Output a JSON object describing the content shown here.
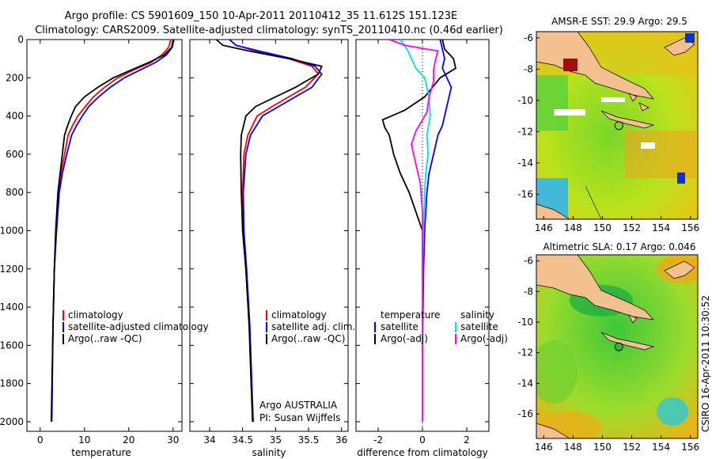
{
  "header": {
    "line1": "Argo profile: CS 5901609_150 10-Apr-2011 20110412_35 11.612S 151.123E",
    "line2": "Climatology: CARS2009. Satellite-adjusted climatology: synTS_20110410.nc (0.46d earlier)"
  },
  "footer_stamp": "CSIRO 16-Apr-2011 10:30:52",
  "colors": {
    "climatology": "#ff0000",
    "satellite": "#0000ff",
    "argo": "#000000",
    "sat_diff": "#00e0e0",
    "argo_sal_diff": "#ff00ff"
  },
  "chart_data": [
    {
      "type": "line",
      "id": "temperature",
      "xlabel": "temperature",
      "ylabel": "",
      "xlim": [
        -3,
        32
      ],
      "ylim": [
        2050,
        0
      ],
      "xticks": [
        0,
        10,
        20,
        30
      ],
      "yticks": [
        0,
        200,
        400,
        600,
        800,
        1000,
        1200,
        1400,
        1600,
        1800,
        2000
      ],
      "series": [
        {
          "name": "climatology",
          "color": "#ff0000",
          "x": [
            29.5,
            29.0,
            27.5,
            25.0,
            21.0,
            17.5,
            14.5,
            12.0,
            10.2,
            8.5,
            7.3,
            6.3,
            5.5,
            4.7,
            4.1,
            3.6,
            3.2,
            2.9,
            2.6
          ],
          "y": [
            0,
            40,
            80,
            120,
            160,
            200,
            250,
            300,
            350,
            400,
            450,
            500,
            600,
            700,
            800,
            1000,
            1200,
            1500,
            2000
          ]
        },
        {
          "name": "satellite-adjusted climatology",
          "color": "#0000ff",
          "x": [
            30.2,
            29.8,
            28.5,
            26.0,
            22.5,
            19.0,
            15.8,
            13.2,
            11.0,
            9.5,
            8.2,
            7.1,
            6.0,
            5.0,
            4.3,
            3.7,
            3.2,
            2.9,
            2.6
          ],
          "y": [
            0,
            40,
            80,
            120,
            160,
            200,
            250,
            300,
            350,
            400,
            450,
            500,
            600,
            700,
            800,
            1000,
            1200,
            1500,
            2000
          ]
        },
        {
          "name": "Argo(..raw -QC)",
          "color": "#000000",
          "x": [
            30.0,
            29.7,
            28.0,
            24.5,
            20.5,
            16.5,
            13.0,
            10.0,
            8.0,
            7.0,
            6.2,
            5.5,
            5.0,
            4.5,
            4.0,
            3.5,
            3.2,
            2.9,
            2.5
          ],
          "y": [
            0,
            40,
            80,
            120,
            160,
            200,
            250,
            300,
            350,
            400,
            450,
            500,
            600,
            700,
            800,
            1000,
            1200,
            1500,
            2000
          ]
        }
      ],
      "legend": [
        "climatology",
        "satellite-adjusted climatology",
        "Argo(..raw -QC)"
      ]
    },
    {
      "type": "line",
      "id": "salinity",
      "xlabel": "salinity",
      "xlim": [
        33.7,
        36.1
      ],
      "ylim": [
        2050,
        0
      ],
      "xticks": [
        34,
        34.5,
        35,
        35.5,
        36
      ],
      "series": [
        {
          "name": "climatology",
          "color": "#ff0000",
          "x": [
            34.3,
            34.4,
            34.7,
            35.2,
            35.55,
            35.65,
            35.45,
            35.2,
            34.95,
            34.72,
            34.58,
            34.52,
            34.5,
            34.5,
            34.55,
            34.6,
            34.63,
            34.66
          ],
          "y": [
            0,
            30,
            60,
            100,
            140,
            180,
            250,
            300,
            350,
            400,
            500,
            600,
            800,
            1000,
            1200,
            1500,
            1800,
            2000
          ]
        },
        {
          "name": "satellite adj. clim.",
          "color": "#0000ff",
          "x": [
            34.3,
            34.4,
            34.75,
            35.25,
            35.6,
            35.7,
            35.55,
            35.3,
            35.05,
            34.8,
            34.62,
            34.55,
            34.51,
            34.52,
            34.56,
            34.61,
            34.64,
            34.66
          ],
          "y": [
            0,
            30,
            60,
            100,
            140,
            180,
            250,
            300,
            350,
            400,
            500,
            600,
            800,
            1000,
            1200,
            1500,
            1800,
            2000
          ]
        },
        {
          "name": "Argo(..raw -QC)",
          "color": "#000000",
          "x": [
            34.1,
            34.2,
            34.6,
            35.2,
            35.7,
            35.65,
            35.3,
            35.0,
            34.7,
            34.55,
            34.48,
            34.47,
            34.48,
            34.5,
            34.55,
            34.6,
            34.63,
            34.65
          ],
          "y": [
            0,
            30,
            60,
            100,
            140,
            180,
            250,
            300,
            350,
            400,
            500,
            600,
            800,
            1000,
            1200,
            1500,
            1800,
            2000
          ]
        }
      ],
      "legend": [
        "climatology",
        "satellite adj. clim.",
        "Argo(..raw -QC)"
      ],
      "annotations": [
        "Argo AUSTRALIA",
        "PI: Susan Wijffels"
      ]
    },
    {
      "type": "line",
      "id": "difference",
      "xlabel": "difference from climatology",
      "xlim": [
        -3,
        3
      ],
      "ylim": [
        2050,
        0
      ],
      "xticks": [
        -2,
        0,
        2
      ],
      "series": [
        {
          "name": "temperature satellite",
          "color": "#0000ff",
          "x": [
            0.8,
            0.9,
            1.0,
            0.9,
            1.1,
            1.3,
            1.2,
            1.1,
            1.0,
            0.9,
            0.7,
            0.5,
            0.3,
            0.2,
            0.1,
            0.05,
            0.0,
            0.0
          ],
          "y": [
            0,
            50,
            100,
            150,
            200,
            250,
            300,
            350,
            400,
            450,
            500,
            600,
            700,
            800,
            1000,
            1200,
            1600,
            2000
          ]
        },
        {
          "name": "temperature Argo(-adj)",
          "color": "#000000",
          "x": [
            0.9,
            1.0,
            1.4,
            1.5,
            0.8,
            0.1,
            -0.8,
            -1.8,
            -1.7,
            -1.5,
            -1.3,
            -1.0,
            -0.6,
            -0.3,
            0.0,
            0.0,
            0.0
          ],
          "y": [
            0,
            50,
            100,
            150,
            200,
            300,
            370,
            420,
            460,
            500,
            600,
            700,
            800,
            900,
            1000,
            1500,
            2000
          ]
        },
        {
          "name": "salinity satellite",
          "color": "#00e0e0",
          "x": [
            -1.0,
            -0.7,
            -0.5,
            -0.3,
            0.1,
            0.3,
            0.35,
            0.2,
            0.25,
            0.15,
            0.1,
            0.05,
            0.0,
            0.0,
            0.0,
            0.0
          ],
          "y": [
            0,
            50,
            100,
            150,
            200,
            300,
            400,
            500,
            600,
            700,
            800,
            1000,
            1200,
            1400,
            1600,
            2000
          ]
        },
        {
          "name": "salinity Argo(-adj)",
          "color": "#ff00ff",
          "x": [
            -1.5,
            -0.8,
            0.7,
            0.6,
            0.5,
            0.5,
            0.3,
            0.2,
            0.0,
            -0.3,
            -0.5,
            -0.3,
            -0.1,
            0.0,
            0.0,
            0.0
          ],
          "y": [
            0,
            30,
            60,
            100,
            160,
            220,
            300,
            380,
            420,
            480,
            550,
            650,
            750,
            900,
            1200,
            2000
          ]
        }
      ],
      "legend_left_title": "temperature",
      "legend_right_title": "salinity",
      "legend_left": [
        "satellite",
        "Argo(-adj)"
      ],
      "legend_right": [
        "satellite",
        "Argo(-adj)"
      ]
    },
    {
      "type": "heatmap",
      "id": "sst_map",
      "title": "AMSR-E SST: 29.9 Argo: 29.5",
      "xticks": [
        146,
        148,
        150,
        152,
        154,
        156
      ],
      "yticks": [
        -6,
        -8,
        -10,
        -12,
        -14,
        -16
      ],
      "xlim": [
        145.5,
        156.5
      ],
      "ylim": [
        -17.6,
        -5.6
      ],
      "float_position": {
        "lon": 151.123,
        "lat": -11.612
      }
    },
    {
      "type": "heatmap",
      "id": "sla_map",
      "title": "Altimetric SLA: 0.17 Argo: 0.046",
      "xticks": [
        146,
        148,
        150,
        152,
        154,
        156
      ],
      "yticks": [
        -6,
        -8,
        -10,
        -12,
        -14,
        -16
      ],
      "xlim": [
        145.5,
        156.5
      ],
      "ylim": [
        -17.6,
        -5.6
      ],
      "float_position": {
        "lon": 151.123,
        "lat": -11.612
      }
    }
  ]
}
